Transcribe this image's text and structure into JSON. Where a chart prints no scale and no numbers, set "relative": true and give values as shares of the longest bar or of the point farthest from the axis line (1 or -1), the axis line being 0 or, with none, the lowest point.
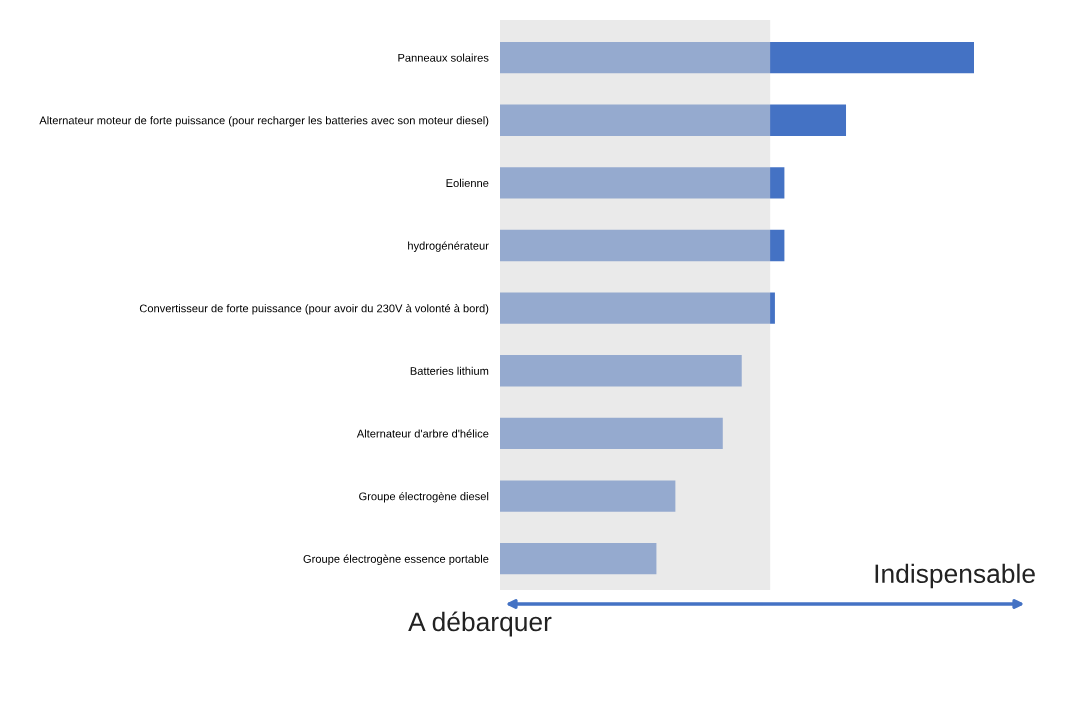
{
  "chart_data": {
    "type": "bar",
    "orientation": "horizontal",
    "relative": true,
    "categories": [
      "Panneaux solaires",
      "Alternateur moteur de forte puissance (pour recharger les batteries avec son moteur diesel)",
      "Eolienne",
      "hydrogénérateur",
      "Convertisseur de forte puissance (pour avoir du 230V à volonté à bord)",
      "Batteries lithium",
      "Alternateur d'arbre d'hélice",
      "Groupe électrogène diesel",
      "Groupe électrogène essence portable"
    ],
    "values": [
      1,
      0.73,
      0.6,
      0.6,
      0.58,
      0.51,
      0.47,
      0.37,
      0.33
    ],
    "color": "#4472c4",
    "bands": [
      {
        "axis": "x",
        "from": 0,
        "to": 0.57,
        "color": "#d9d9d9"
      }
    ],
    "annotations": [
      "Indispensable",
      "A débarquer"
    ],
    "grid": false,
    "legend": false
  }
}
